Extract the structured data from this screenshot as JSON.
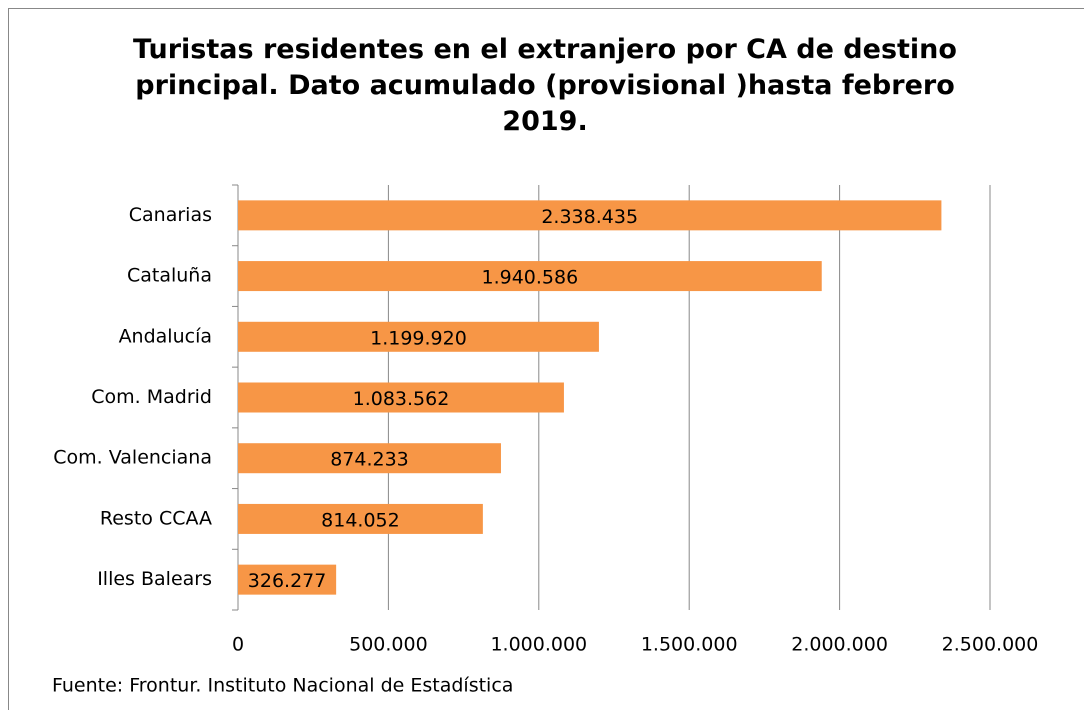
{
  "chart_data": {
    "type": "bar",
    "orientation": "horizontal",
    "title": "Turistas residentes en el extranjero por CA de destino principal. Dato acumulado (provisional )hasta febrero 2019.",
    "categories": [
      "Canarias",
      "Cataluña",
      "Andalucía",
      "Com. Madrid",
      "Com. Valenciana",
      "Resto CCAA",
      "Illes Balears"
    ],
    "values": [
      2338435,
      1940586,
      1199920,
      1083562,
      874233,
      814052,
      326277
    ],
    "value_labels": [
      "2.338.435",
      "1.940.586",
      "1.199.920",
      "1.083.562",
      "874.233",
      "814.052",
      "326.277"
    ],
    "color": "#f79646",
    "xlim": [
      0,
      2500000
    ],
    "xticks": [
      0,
      {
        "value": 500000,
        "label": "500.000"
      },
      {
        "value": 1000000,
        "label": "1.000.000"
      },
      {
        "value": 1500000,
        "label": "1.500.000"
      },
      {
        "value": 2000000,
        "label": "2.000.000"
      },
      {
        "value": 2500000,
        "label": "2.500.000"
      }
    ],
    "grid": true,
    "source": "Fuente: Frontur. Instituto Nacional de Estadística"
  }
}
